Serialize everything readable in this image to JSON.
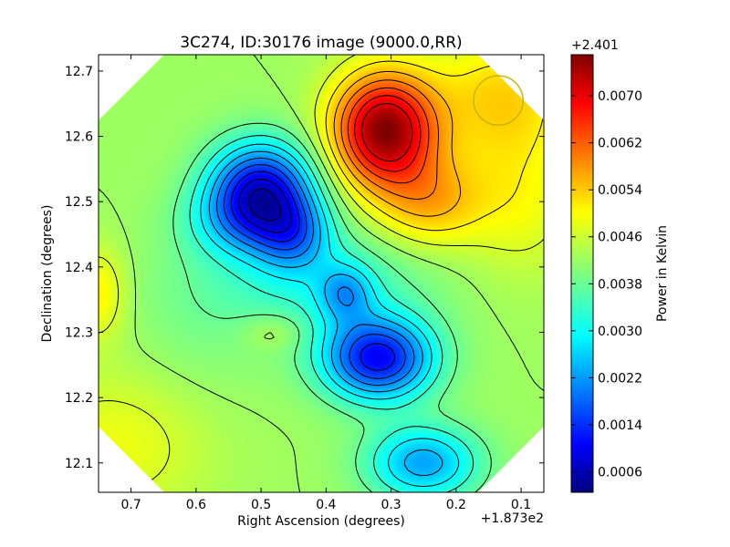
{
  "chart_data": {
    "type": "heatmap",
    "title": "3C274, ID:30176 image (9000.0,RR)",
    "xlabel": "Right Ascension (degrees)",
    "ylabel": "Declination (degrees)",
    "x_offset_label": "+1.873e2",
    "xlim": [
      0.75,
      0.065
    ],
    "ylim": [
      12.055,
      12.725
    ],
    "x_ticks": [
      "0.7",
      "0.6",
      "0.5",
      "0.4",
      "0.3",
      "0.2",
      "0.1"
    ],
    "x_tick_values": [
      0.7,
      0.6,
      0.5,
      0.4,
      0.3,
      0.2,
      0.1
    ],
    "y_ticks": [
      "12.1",
      "12.2",
      "12.3",
      "12.4",
      "12.5",
      "12.6",
      "12.7"
    ],
    "y_tick_values": [
      12.1,
      12.2,
      12.3,
      12.4,
      12.5,
      12.6,
      12.7
    ],
    "colorbar": {
      "label": "Power in Kelvin",
      "offset_label": "+2.401",
      "ticks": [
        "0.0006",
        "0.0014",
        "0.0022",
        "0.0030",
        "0.0038",
        "0.0046",
        "0.0054",
        "0.0062",
        "0.0070"
      ],
      "tick_values": [
        0.0006,
        0.0014,
        0.0022,
        0.003,
        0.0038,
        0.0046,
        0.0054,
        0.0062,
        0.007
      ],
      "range": [
        0.00025,
        0.0077
      ]
    },
    "baseline": 0.0042,
    "features": [
      {
        "x": 0.31,
        "y": 12.61,
        "amp": 0.0034,
        "sx": 0.055,
        "sy": 0.06
      },
      {
        "x": 0.24,
        "y": 12.5,
        "amp": 0.0012,
        "sx": 0.06,
        "sy": 0.05
      },
      {
        "x": 0.13,
        "y": 12.66,
        "amp": 0.001,
        "sx": 0.08,
        "sy": 0.07
      },
      {
        "x": 0.1,
        "y": 12.5,
        "amp": 0.0006,
        "sx": 0.06,
        "sy": 0.08
      },
      {
        "x": 0.5,
        "y": 12.52,
        "amp": -0.003,
        "sx": 0.055,
        "sy": 0.05
      },
      {
        "x": 0.53,
        "y": 12.47,
        "amp": -0.001,
        "sx": 0.06,
        "sy": 0.04
      },
      {
        "x": 0.45,
        "y": 12.45,
        "amp": -0.0014,
        "sx": 0.04,
        "sy": 0.04
      },
      {
        "x": 0.32,
        "y": 12.26,
        "amp": -0.003,
        "sx": 0.06,
        "sy": 0.045
      },
      {
        "x": 0.37,
        "y": 12.36,
        "amp": -0.0012,
        "sx": 0.03,
        "sy": 0.03
      },
      {
        "x": 0.25,
        "y": 12.1,
        "amp": -0.0018,
        "sx": 0.06,
        "sy": 0.04
      },
      {
        "x": 0.42,
        "y": 12.38,
        "amp": -0.0008,
        "sx": 0.12,
        "sy": 0.06
      },
      {
        "x": 0.48,
        "y": 12.3,
        "amp": 0.0004,
        "sx": 0.035,
        "sy": 0.02
      },
      {
        "x": 0.75,
        "y": 12.36,
        "amp": 0.0008,
        "sx": 0.03,
        "sy": 0.05
      },
      {
        "x": 0.72,
        "y": 12.13,
        "amp": 0.0006,
        "sx": 0.1,
        "sy": 0.08
      },
      {
        "x": 0.6,
        "y": 12.3,
        "amp": -0.0002,
        "sx": 0.08,
        "sy": 0.1
      }
    ],
    "contour_levels": [
      0.0006,
      0.001,
      0.0014,
      0.0018,
      0.0022,
      0.0026,
      0.003,
      0.0034,
      0.0038,
      0.0042,
      0.0046,
      0.005,
      0.0054,
      0.0058,
      0.0062,
      0.0066,
      0.007
    ],
    "beam": {
      "x": 0.135,
      "y": 12.655,
      "radius": 0.038
    },
    "colors": {
      "beam": "#c8b400",
      "contours": "#000000",
      "background": "#ffffff"
    }
  }
}
